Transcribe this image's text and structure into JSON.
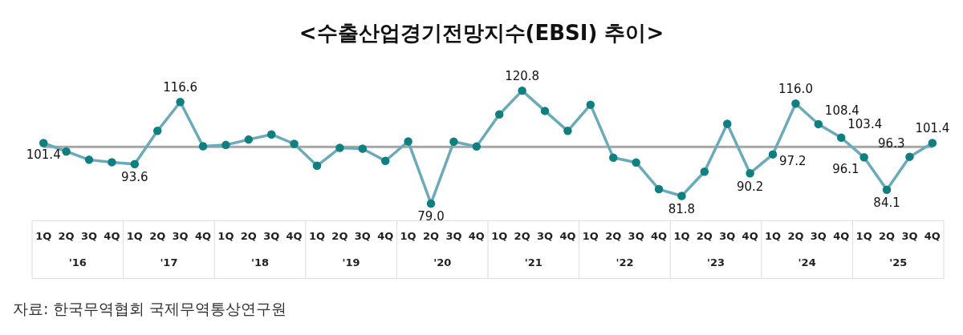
{
  "chart_data": {
    "type": "line",
    "title": "<수출산업경기전망지수(EBSI)  추이>",
    "categories": [
      "1Q",
      "2Q",
      "3Q",
      "4Q",
      "1Q",
      "2Q",
      "3Q",
      "4Q",
      "1Q",
      "2Q",
      "3Q",
      "4Q",
      "1Q",
      "2Q",
      "3Q",
      "4Q",
      "1Q",
      "2Q",
      "3Q",
      "4Q",
      "1Q",
      "2Q",
      "3Q",
      "4Q",
      "1Q",
      "2Q",
      "3Q",
      "4Q",
      "1Q",
      "2Q",
      "3Q",
      "4Q",
      "1Q",
      "2Q",
      "3Q",
      "4Q",
      "1Q",
      "2Q",
      "3Q",
      "4Q"
    ],
    "series": [
      {
        "color": "#6aaabb",
        "values": [
          101.4,
          98.3,
          95.2,
          94.3,
          93.6,
          105.9,
          116.6,
          100.2,
          100.7,
          102.7,
          104.6,
          101.1,
          93.0,
          99.6,
          99.3,
          94.8,
          102.0,
          79.0,
          101.9,
          100.1,
          112.0,
          120.8,
          113.3,
          105.9,
          115.6,
          96.0,
          94.2,
          84.3,
          81.8,
          90.8,
          108.5,
          90.2,
          97.2,
          116.0,
          108.4,
          103.4,
          96.1,
          84.1,
          96.3,
          101.4
        ],
        "value_labels": [
          "101.4",
          null,
          null,
          null,
          "93.6",
          null,
          "116.6",
          null,
          null,
          null,
          null,
          null,
          null,
          null,
          null,
          null,
          null,
          "79.0",
          null,
          null,
          null,
          "120.8",
          null,
          null,
          null,
          null,
          null,
          null,
          "81.8",
          null,
          null,
          "90.2",
          "97.2",
          "116.0",
          "108.4",
          "103.4",
          "96.1",
          "84.1",
          "96.3",
          "101.4"
        ]
      }
    ],
    "marker": "circle",
    "grid": false,
    "legend": false,
    "ref_lines": [
      {
        "axis": "y",
        "value": 100,
        "color": "#a6a6a6"
      }
    ],
    "annotations": [
      "'16",
      "'17",
      "'18",
      "'19",
      "'20",
      "'21",
      "'22",
      "'23",
      "'24",
      "'25",
      "자료:  한국무역협회  국제무역통상연구원"
    ]
  }
}
